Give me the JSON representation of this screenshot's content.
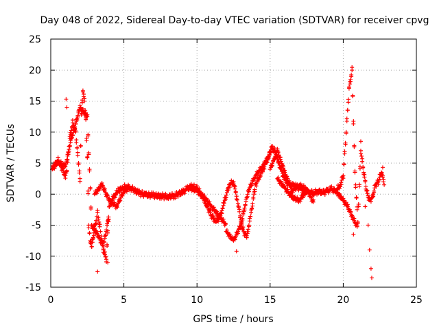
{
  "chart_data": {
    "type": "scatter",
    "title": "Day 048 of 2022, Sidereal Day-to-day VTEC variation (SDTVAR) for receiver cpvg",
    "xlabel": "GPS time / hours",
    "ylabel": "SDTVAR / TECUs",
    "xlim": [
      0,
      25
    ],
    "ylim": [
      -15,
      25
    ],
    "x_ticks": [
      "0",
      "5",
      "10",
      "15",
      "20",
      "25"
    ],
    "y_ticks": [
      "-15",
      "-10",
      "-5",
      "0",
      "5",
      "10",
      "15",
      "20",
      "25"
    ],
    "grid": true,
    "marker": "+",
    "color": "#ff0000",
    "series": [
      {
        "name": "SDTVAR",
        "trace_x": [
          0.1,
          0.3,
          0.5,
          0.7,
          0.9,
          1.0,
          1.1,
          1.3,
          1.5,
          1.7,
          1.9,
          2.0,
          2.1,
          2.2,
          2.3,
          2.4,
          2.5,
          2.6,
          2.7,
          2.8,
          3.0,
          3.2,
          3.4,
          3.6,
          3.8,
          4.0,
          4.3,
          4.6,
          4.9,
          5.2,
          5.5,
          6.0,
          6.5,
          7.0,
          7.5,
          8.0,
          8.5,
          9.0,
          9.3,
          9.6,
          10.0,
          10.3,
          10.6,
          11.0,
          11.3,
          11.6,
          11.9,
          12.2,
          12.5,
          12.8,
          13.1,
          13.4,
          13.7,
          14.0,
          14.3,
          14.6,
          14.9,
          15.1,
          15.3,
          15.6,
          15.9,
          16.2,
          16.5,
          16.8,
          17.1,
          17.4,
          17.7,
          18.0,
          18.3,
          18.6,
          18.9,
          19.2,
          19.5,
          19.8,
          20.0,
          20.2,
          20.4,
          20.6,
          20.8,
          21.0,
          21.2,
          21.4,
          21.6,
          21.8,
          22.0,
          22.2,
          22.4,
          22.6,
          22.8
        ],
        "trace_y": [
          4.0,
          4.8,
          5.5,
          4.5,
          3.5,
          3.0,
          3.8,
          9.0,
          11.5,
          10.0,
          5.0,
          2.5,
          13.0,
          16.5,
          15.0,
          12.0,
          6.0,
          -5.0,
          -7.5,
          -8.5,
          -5.5,
          -3.0,
          -6.0,
          -9.0,
          -10.5,
          -2.0,
          -0.5,
          0.5,
          1.0,
          1.2,
          1.0,
          0.2,
          -0.1,
          -0.2,
          -0.3,
          -0.4,
          -0.2,
          0.3,
          0.8,
          1.2,
          1.0,
          0.0,
          -1.5,
          -3.5,
          -4.5,
          -3.5,
          -1.0,
          1.5,
          2.0,
          -1.5,
          -5.5,
          -7.0,
          -3.0,
          1.5,
          3.0,
          4.5,
          6.0,
          7.5,
          7.0,
          5.0,
          3.0,
          1.8,
          1.5,
          1.2,
          0.8,
          0.5,
          0.3,
          0.2,
          0.5,
          0.2,
          0.5,
          0.8,
          0.5,
          1.5,
          3.0,
          10.0,
          17.0,
          20.0,
          3.5,
          -4.5,
          7.0,
          3.5,
          0.5,
          -1.0,
          -0.5,
          1.5,
          2.0,
          3.5,
          2.0
        ],
        "scattered_points": [
          [
            1.05,
            15.3
          ],
          [
            1.1,
            14.0
          ],
          [
            3.2,
            -12.5
          ],
          [
            3.9,
            -11.0
          ],
          [
            12.7,
            -9.2
          ],
          [
            20.7,
            -6.5
          ],
          [
            21.2,
            8.5
          ],
          [
            21.5,
            -2.0
          ],
          [
            21.7,
            -5.0
          ],
          [
            21.8,
            -9.0
          ],
          [
            21.9,
            -12.0
          ],
          [
            21.95,
            -13.5
          ],
          [
            22.7,
            4.3
          ],
          [
            22.8,
            1.5
          ]
        ],
        "ribbons": [
          {
            "x": [
              0.1,
              0.5,
              1.0,
              1.5
            ],
            "y": [
              4.0,
              5.2,
              4.5,
              10.0
            ]
          },
          {
            "x": [
              1.5,
              2.0,
              2.5,
              2.8,
              3.2,
              3.6,
              4.0
            ],
            "y": [
              9.5,
              14.0,
              12.5,
              -5.0,
              -6.5,
              -8.5,
              -3.0
            ]
          },
          {
            "x": [
              3.0,
              3.5,
              4.0,
              4.5,
              5.0,
              5.4
            ],
            "y": [
              0.0,
              1.5,
              -1.0,
              -2.0,
              0.5,
              1.0
            ]
          },
          {
            "x": [
              9.5,
              10.0,
              10.5,
              11.0,
              11.5,
              12.0
            ],
            "y": [
              1.0,
              0.5,
              -0.5,
              -2.0,
              -3.5,
              -5.0
            ]
          },
          {
            "x": [
              12.0,
              12.5,
              13.0,
              13.5,
              14.0,
              14.5,
              15.0
            ],
            "y": [
              -6.0,
              -7.5,
              -5.0,
              0.5,
              3.0,
              4.5,
              6.5
            ]
          },
          {
            "x": [
              15.0,
              15.5,
              16.0,
              16.5,
              17.0,
              17.5,
              18.0
            ],
            "y": [
              4.0,
              7.0,
              3.5,
              0.5,
              1.5,
              0.8,
              -1.5
            ]
          },
          {
            "x": [
              15.5,
              16.0,
              16.5,
              17.0,
              17.5
            ],
            "y": [
              2.5,
              1.0,
              -0.5,
              -1.0,
              0.5
            ]
          },
          {
            "x": [
              19.5,
              20.0,
              20.3,
              20.6,
              21.0
            ],
            "y": [
              0.5,
              -1.0,
              -2.0,
              -3.5,
              -5.5
            ]
          }
        ]
      }
    ]
  }
}
